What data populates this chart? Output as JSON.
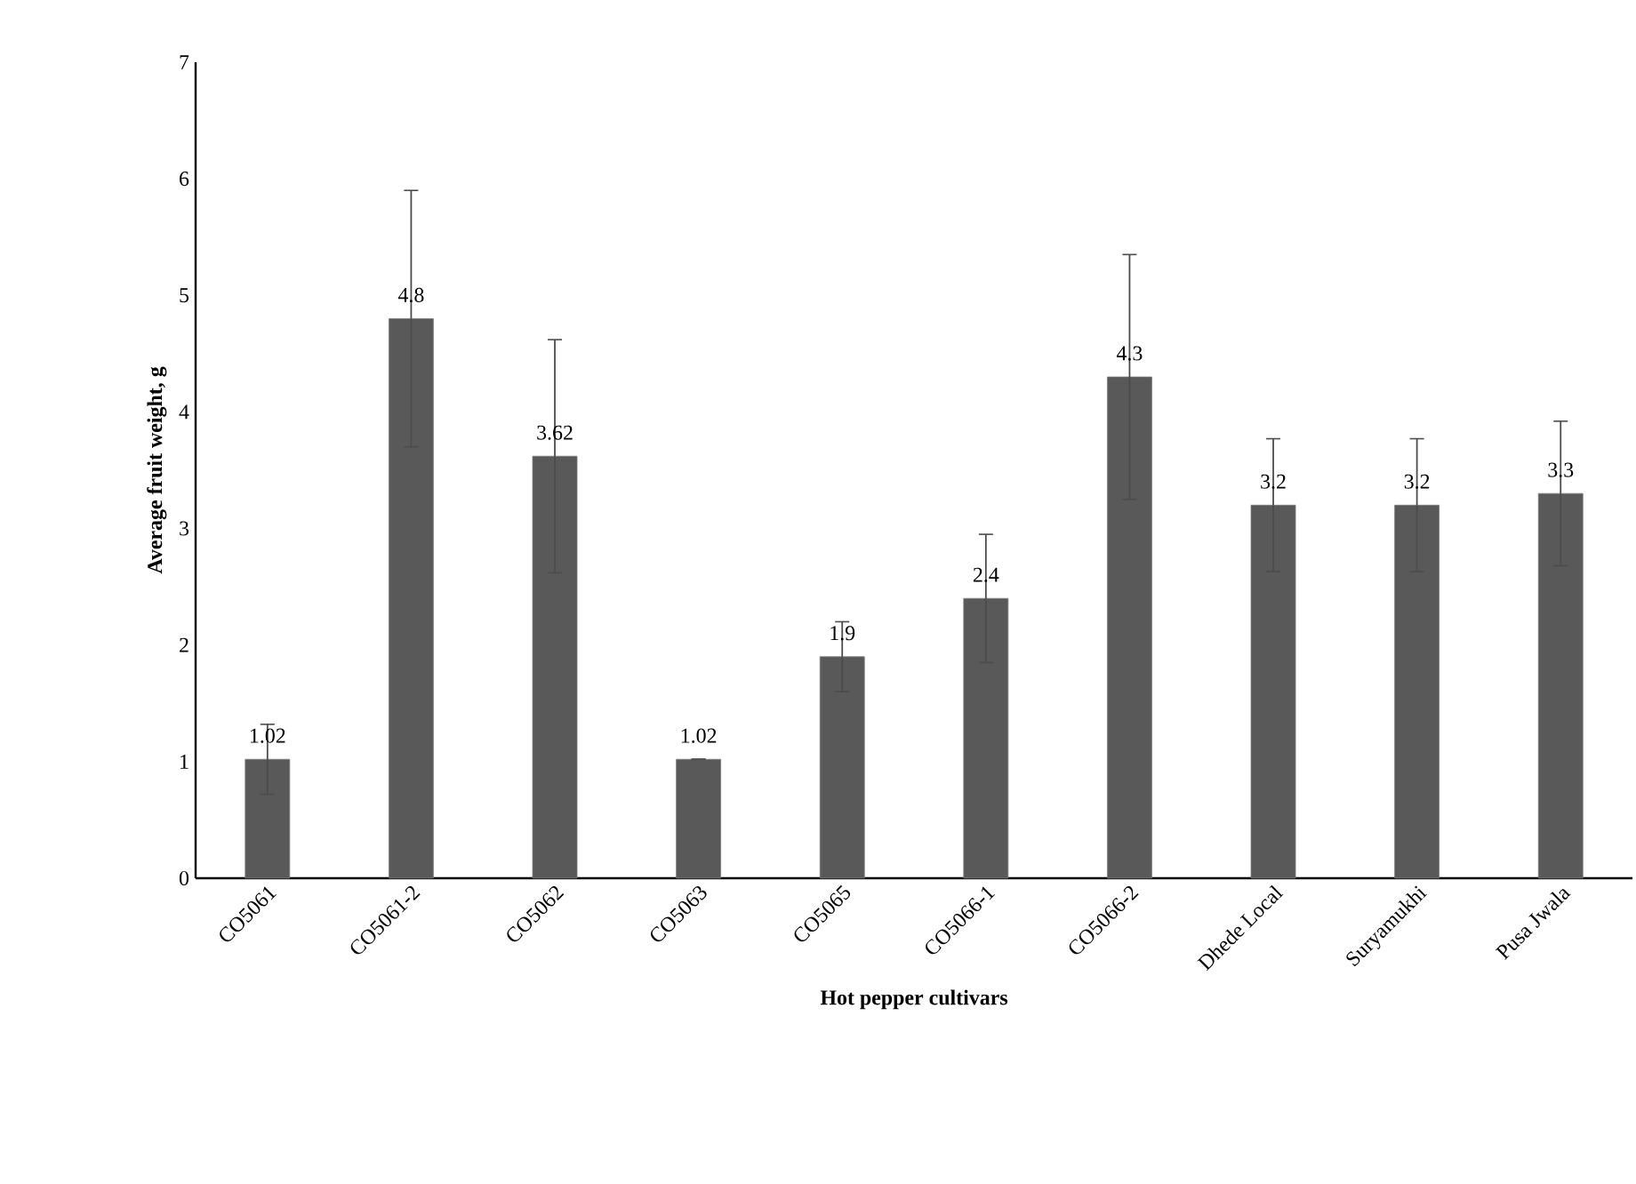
{
  "chart_data": {
    "type": "bar",
    "xlabel": "Hot pepper cultivars",
    "ylabel": "Average fruit weight, g",
    "categories": [
      "CO5061",
      "CO5061-2",
      "CO5062",
      "CO5063",
      "CO5065",
      "CO5066-1",
      "CO5066-2",
      "Dhede Local",
      "Suryamukhi",
      "Pusa Jwala"
    ],
    "values": [
      1.02,
      4.8,
      3.62,
      1.02,
      1.9,
      2.4,
      4.3,
      3.2,
      3.2,
      3.3
    ],
    "errors": [
      0.3,
      1.1,
      1.0,
      0.0,
      0.3,
      0.55,
      1.05,
      0.57,
      0.57,
      0.62
    ],
    "color": "#595959",
    "ylim": [
      0,
      7
    ],
    "yticks": [
      0,
      1,
      2,
      3,
      4,
      5,
      6,
      7
    ],
    "data_labels": true,
    "grid": false
  }
}
